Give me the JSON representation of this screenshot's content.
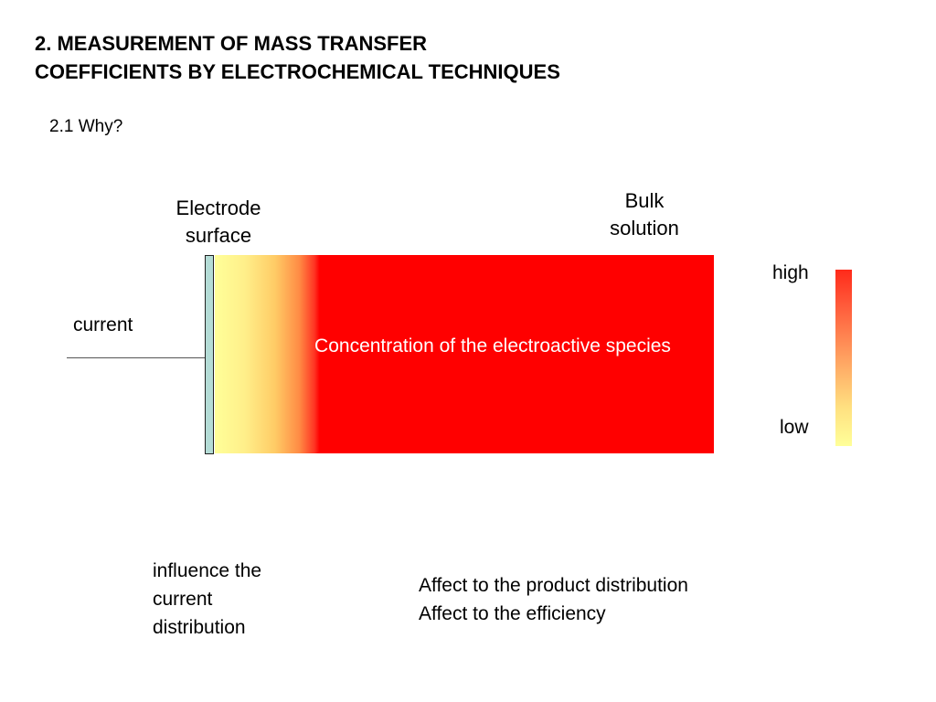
{
  "title": {
    "line1": "2. MEASUREMENT OF MASS TRANSFER",
    "line2": "COEFFICIENTS BY ELECTROCHEMICAL TECHNIQUES"
  },
  "subtitle": "2.1 Why?",
  "diagram": {
    "electrode_label_line1": "Electrode",
    "electrode_label_line2": "surface",
    "bulk_label_line1": "Bulk",
    "bulk_label_line2": "solution",
    "current_label": "current",
    "concentration_text": "Concentration of the electroactive species",
    "colors": {
      "electrode": "#b4dcd6",
      "high": "#ff0000",
      "low": "#ffff99"
    }
  },
  "legend": {
    "high": "high",
    "low": "low"
  },
  "notes": {
    "influence": [
      "influence the",
      "current",
      "distribution"
    ],
    "affect": [
      "Affect to the product distribution",
      "Affect to the efficiency"
    ]
  }
}
